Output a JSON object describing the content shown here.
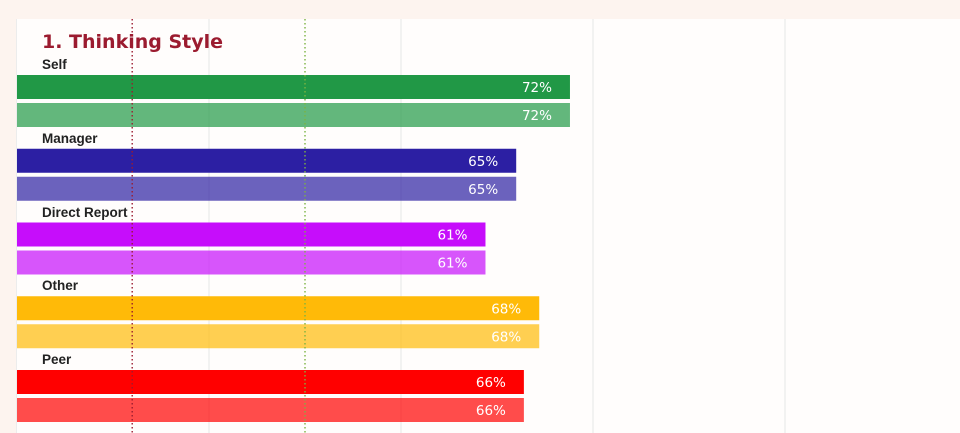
{
  "chart_data": {
    "type": "bar",
    "orientation": "horizontal",
    "title": "1. Thinking Style",
    "xlim": [
      0,
      100
    ],
    "grid": true,
    "reference_lines": [
      {
        "value": 15,
        "style": "dotted",
        "color": "#9b1b2f"
      },
      {
        "value": 37.5,
        "style": "dotted",
        "color": "#7cb342"
      }
    ],
    "groups": [
      {
        "label": "Self",
        "color": "#219846",
        "values": [
          72,
          72
        ],
        "value_labels": [
          "72%",
          "72%"
        ]
      },
      {
        "label": "Manager",
        "color": "#2c1fa3",
        "values": [
          65,
          65
        ],
        "value_labels": [
          "65%",
          "65%"
        ]
      },
      {
        "label": "Direct Report",
        "color": "#c60dfb",
        "values": [
          61,
          61
        ],
        "value_labels": [
          "61%",
          "61%"
        ]
      },
      {
        "label": "Other",
        "color": "#ffba08",
        "values": [
          68,
          68
        ],
        "value_labels": [
          "68%",
          "68%"
        ]
      },
      {
        "label": "Peer",
        "color": "#ff0000",
        "values": [
          66,
          66
        ],
        "value_labels": [
          "66%",
          "66%"
        ]
      }
    ]
  }
}
